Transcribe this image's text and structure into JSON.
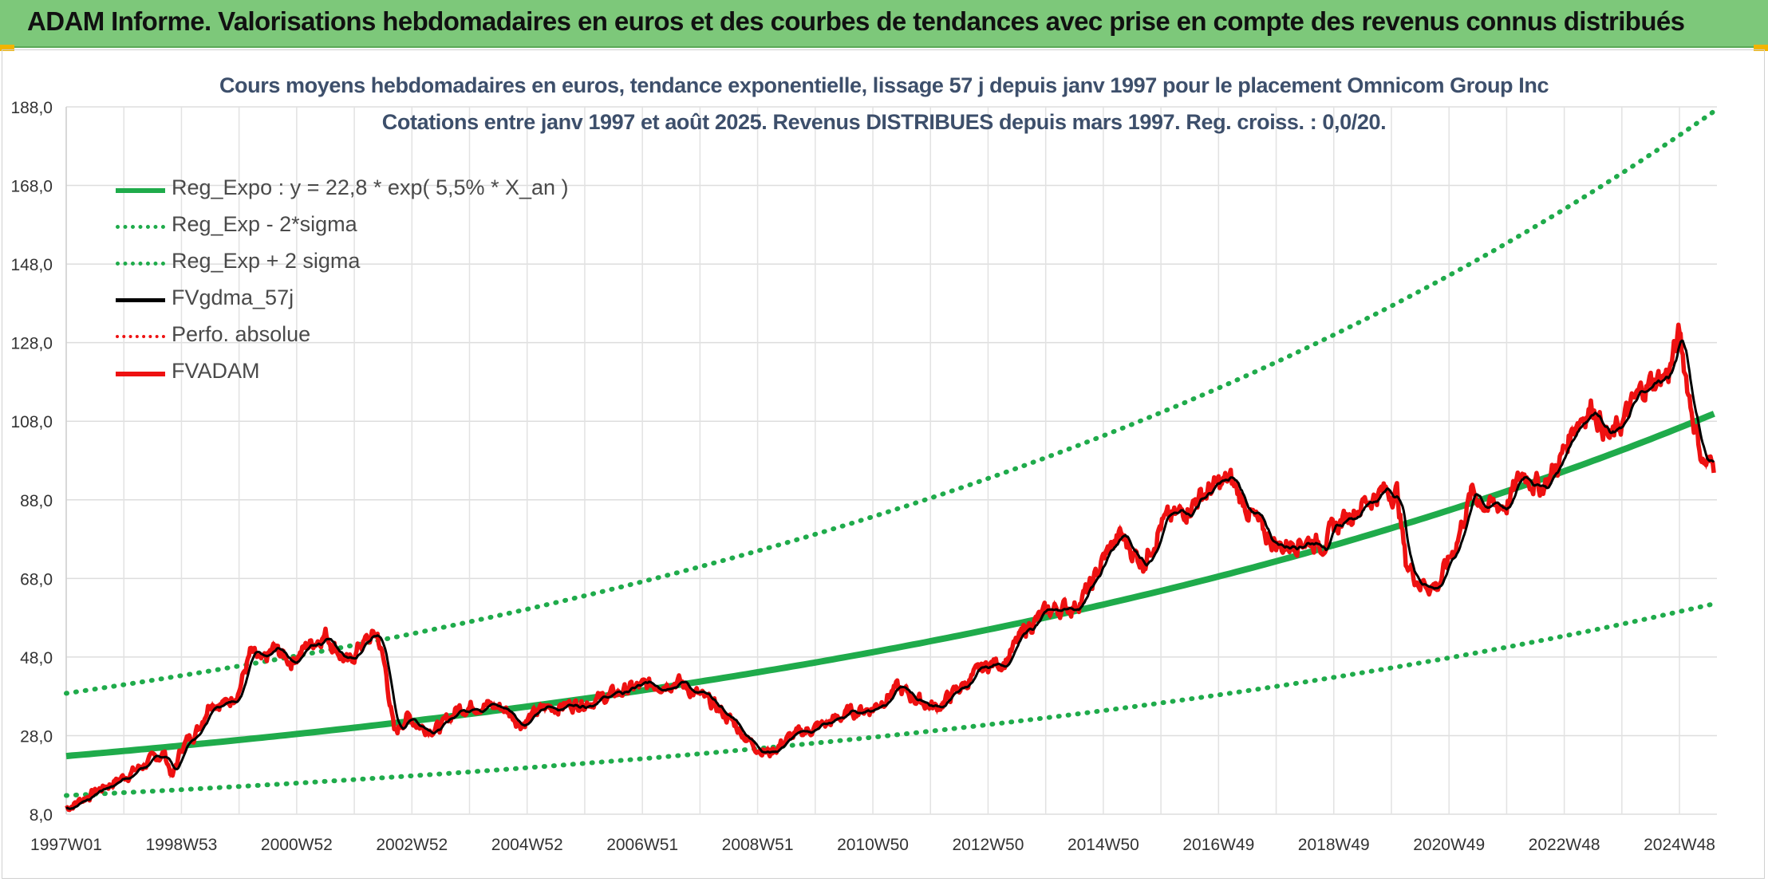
{
  "banner": {
    "title": "ADAM Informe. Valorisations hebdomadaires en euros et des courbes de tendances avec prise en compte des revenus connus distribués"
  },
  "colors": {
    "banner_bg": "#7dc87a",
    "reg_green": "#1fab4b",
    "fvadam_red": "#ee1111",
    "smooth_black": "#000000",
    "perfo_red": "#ee1111",
    "title_text": "#3d4f6b"
  },
  "chart_data": {
    "type": "line",
    "title_line1": "Cours moyens hebdomadaires en euros, tendance exponentielle, lissage 57 j depuis janv 1997 pour le placement Omnicom Group Inc",
    "title_line2": "Cotations entre janv 1997 et août 2025. Revenus DISTRIBUES depuis mars 1997. Reg. croiss. : 0,0/20.",
    "x_tick_labels": [
      "1997W01",
      "1998W53",
      "2000W52",
      "2002W52",
      "2004W52",
      "2006W51",
      "2008W51",
      "2010W50",
      "2012W50",
      "2014W50",
      "2016W49",
      "2018W49",
      "2020W49",
      "2022W48",
      "2024W48"
    ],
    "x_tick_years": [
      1997.0,
      1999.0,
      2001.0,
      2003.0,
      2005.0,
      2007.0,
      2009.0,
      2011.0,
      2013.0,
      2015.0,
      2017.0,
      2019.0,
      2021.0,
      2023.0,
      2025.0
    ],
    "x_range_years": [
      1997.0,
      2025.65
    ],
    "y_tick_labels": [
      "8,0",
      "28,0",
      "48,0",
      "68,0",
      "88,0",
      "108,0",
      "128,0",
      "148,0",
      "168,0",
      "188,0"
    ],
    "ylim": [
      8,
      188
    ],
    "grid": true,
    "legend_placement": "top-left",
    "regression": {
      "label": "Reg_Expo : y = 22,8 * exp( 5,5% *  X_an )",
      "a": 22.8,
      "rate": 0.055,
      "lower_factor": 0.56,
      "upper_factor": 1.7
    },
    "series": [
      {
        "name": "Reg_Expo : y = 22,8 * exp( 5,5% *  X_an )",
        "style": "solid",
        "color": "#1fab4b",
        "kind": "regression"
      },
      {
        "name": "Reg_Exp - 2*sigma",
        "style": "dotted",
        "color": "#1fab4b",
        "kind": "lower"
      },
      {
        "name": "Reg_Exp + 2 sigma",
        "style": "dotted",
        "color": "#1fab4b",
        "kind": "upper"
      },
      {
        "name": "FVgdma_57j",
        "style": "solid",
        "color": "#000000",
        "kind": "smoothed"
      },
      {
        "name": "Perfo. absolue",
        "style": "dotted",
        "color": "#ee1111",
        "kind": "perfo"
      },
      {
        "name": "FVADAM",
        "style": "solid-thick",
        "color": "#ee1111",
        "kind": "price"
      }
    ],
    "price_points": [
      [
        1997.0,
        9.5
      ],
      [
        1997.3,
        12.0
      ],
      [
        1997.6,
        14.5
      ],
      [
        1998.0,
        17.5
      ],
      [
        1998.4,
        21.0
      ],
      [
        1998.7,
        23.5
      ],
      [
        1998.85,
        17.5
      ],
      [
        1999.0,
        25.0
      ],
      [
        1999.3,
        30.0
      ],
      [
        1999.5,
        37.0
      ],
      [
        1999.8,
        36.0
      ],
      [
        2000.0,
        40.0
      ],
      [
        2000.2,
        49.0
      ],
      [
        2000.4,
        46.0
      ],
      [
        2000.6,
        50.0
      ],
      [
        2000.9,
        47.0
      ],
      [
        2001.2,
        51.0
      ],
      [
        2001.5,
        54.0
      ],
      [
        2001.7,
        50.0
      ],
      [
        2001.9,
        46.0
      ],
      [
        2002.1,
        51.0
      ],
      [
        2002.4,
        54.0
      ],
      [
        2002.55,
        44.0
      ],
      [
        2002.7,
        28.0
      ],
      [
        2002.9,
        33.0
      ],
      [
        2003.2,
        30.0
      ],
      [
        2003.5,
        30.0
      ],
      [
        2003.8,
        35.0
      ],
      [
        2004.2,
        36.0
      ],
      [
        2004.6,
        35.0
      ],
      [
        2004.9,
        31.0
      ],
      [
        2005.3,
        35.0
      ],
      [
        2005.8,
        36.0
      ],
      [
        2006.3,
        37.5
      ],
      [
        2006.8,
        40.0
      ],
      [
        2007.2,
        41.0
      ],
      [
        2007.6,
        42.0
      ],
      [
        2008.0,
        38.0
      ],
      [
        2008.3,
        35.0
      ],
      [
        2008.6,
        31.0
      ],
      [
        2008.9,
        26.0
      ],
      [
        2009.2,
        23.5
      ],
      [
        2009.5,
        27.0
      ],
      [
        2009.8,
        29.0
      ],
      [
        2010.2,
        31.0
      ],
      [
        2010.6,
        34.0
      ],
      [
        2011.0,
        35.0
      ],
      [
        2011.4,
        40.0
      ],
      [
        2011.8,
        37.0
      ],
      [
        2012.1,
        35.0
      ],
      [
        2012.5,
        40.0
      ],
      [
        2013.0,
        46.0
      ],
      [
        2013.3,
        47.0
      ],
      [
        2013.7,
        56.0
      ],
      [
        2014.1,
        60.0
      ],
      [
        2014.5,
        61.0
      ],
      [
        2014.8,
        66.0
      ],
      [
        2015.0,
        73.0
      ],
      [
        2015.3,
        79.0
      ],
      [
        2015.5,
        75.0
      ],
      [
        2015.7,
        72.0
      ],
      [
        2016.0,
        82.0
      ],
      [
        2016.3,
        84.0
      ],
      [
        2016.6,
        88.0
      ],
      [
        2016.9,
        91.0
      ],
      [
        2017.2,
        93.0
      ],
      [
        2017.5,
        86.0
      ],
      [
        2017.8,
        79.0
      ],
      [
        2018.1,
        76.0
      ],
      [
        2018.4,
        78.0
      ],
      [
        2018.8,
        77.0
      ],
      [
        2019.1,
        82.0
      ],
      [
        2019.4,
        86.0
      ],
      [
        2019.8,
        90.0
      ],
      [
        2020.1,
        90.0
      ],
      [
        2020.25,
        72.0
      ],
      [
        2020.5,
        67.0
      ],
      [
        2020.8,
        66.0
      ],
      [
        2021.1,
        76.0
      ],
      [
        2021.4,
        90.0
      ],
      [
        2021.7,
        86.0
      ],
      [
        2022.0,
        87.0
      ],
      [
        2022.3,
        95.0
      ],
      [
        2022.6,
        91.0
      ],
      [
        2022.9,
        97.0
      ],
      [
        2023.2,
        108.0
      ],
      [
        2023.5,
        112.0
      ],
      [
        2023.8,
        103.0
      ],
      [
        2024.1,
        110.0
      ],
      [
        2024.4,
        117.0
      ],
      [
        2024.8,
        120.0
      ],
      [
        2025.0,
        130.0
      ],
      [
        2025.2,
        112.0
      ],
      [
        2025.4,
        98.0
      ],
      [
        2025.6,
        96.0
      ]
    ]
  }
}
